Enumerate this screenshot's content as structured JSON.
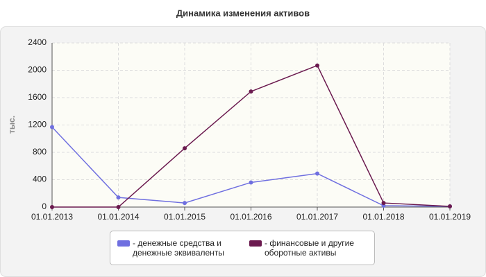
{
  "chart_data": {
    "type": "line",
    "title": "Динамика изменения активов",
    "y_label": "тыс.",
    "categories": [
      "01.01.2013",
      "01.01.2014",
      "01.01.2015",
      "01.01.2016",
      "01.01.2017",
      "01.01.2018",
      "01.01.2019"
    ],
    "series": [
      {
        "name": "- денежные средства и денежные эквиваленты",
        "color": "#6f6fe0",
        "values": [
          1170,
          140,
          60,
          360,
          490,
          20,
          10
        ]
      },
      {
        "name": "- финансовые и другие оборотные активы",
        "color": "#6b1a4f",
        "values": [
          0,
          0,
          860,
          1690,
          2070,
          60,
          10
        ]
      }
    ],
    "ylim": [
      0,
      2400
    ],
    "yticks": [
      0,
      400,
      800,
      1200,
      1600,
      2000,
      2400
    ],
    "grid": true
  }
}
